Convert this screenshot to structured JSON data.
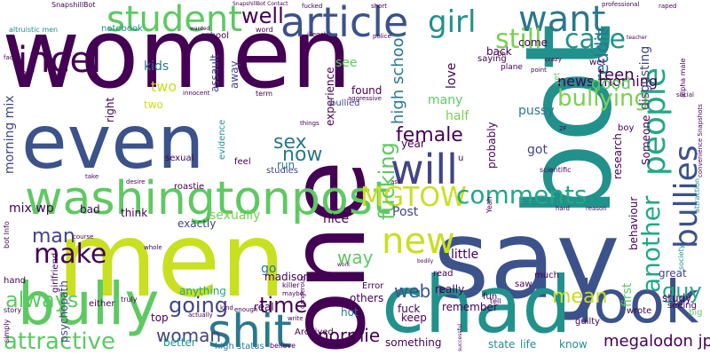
{
  "palette": {
    "dark_purple": "#440154",
    "indigo": "#3b528b",
    "teal": "#21918c",
    "green": "#5ec962",
    "yellow_green": "#c8e020",
    "slate": "#414487",
    "sea": "#2a788e",
    "mint": "#22a884",
    "lime": "#7ad151",
    "background": "#ffffff"
  },
  "words": [
    {
      "text": "women",
      "color": "#440154",
      "vertical": false
    },
    {
      "text": "men",
      "color": "#c8e020",
      "vertical": false
    },
    {
      "text": "say",
      "color": "#3b528b",
      "vertical": false
    },
    {
      "text": "one",
      "color": "#440154",
      "vertical": true
    },
    {
      "text": "bot",
      "color": "#21918c",
      "vertical": true
    },
    {
      "text": "chad",
      "color": "#21918c",
      "vertical": false
    },
    {
      "text": "even",
      "color": "#3b528b",
      "vertical": false
    },
    {
      "text": "bully",
      "color": "#5ec962",
      "vertical": false
    },
    {
      "text": "look",
      "color": "#3b528b",
      "vertical": false
    },
    {
      "text": "washingtonpost",
      "color": "#5ec962",
      "vertical": false
    },
    {
      "text": "shit",
      "color": "#2a788e",
      "vertical": false
    },
    {
      "text": "will",
      "color": "#414487",
      "vertical": false
    },
    {
      "text": "article",
      "color": "#3b528b",
      "vertical": false
    },
    {
      "text": "student",
      "color": "#5ec962",
      "vertical": false
    },
    {
      "text": "incel",
      "color": "#440154",
      "vertical": false
    },
    {
      "text": "want",
      "color": "#2a788e",
      "vertical": false
    },
    {
      "text": "people",
      "color": "#22a884",
      "vertical": true
    },
    {
      "text": "bullies",
      "color": "#3b528b",
      "vertical": true
    },
    {
      "text": "new",
      "color": "#c8e020",
      "vertical": false
    },
    {
      "text": "MGTOW",
      "color": "#c8e020",
      "vertical": false
    },
    {
      "text": "comments",
      "color": "#22a884",
      "vertical": false
    },
    {
      "text": "another",
      "color": "#22a884",
      "vertical": true
    },
    {
      "text": "girl",
      "color": "#21918c",
      "vertical": false
    },
    {
      "text": "still",
      "color": "#7ad151",
      "vertical": false
    },
    {
      "text": "case",
      "color": "#21918c",
      "vertical": false
    },
    {
      "text": "well",
      "color": "#440154",
      "vertical": false
    },
    {
      "text": "make",
      "color": "#440154",
      "vertical": false
    },
    {
      "text": "always",
      "color": "#5ec962",
      "vertical": false
    },
    {
      "text": "attractive",
      "color": "#5ec962",
      "vertical": false
    },
    {
      "text": "man",
      "color": "#414487",
      "vertical": false
    },
    {
      "text": "sex",
      "color": "#2a788e",
      "vertical": false
    },
    {
      "text": "now",
      "color": "#2a788e",
      "vertical": false
    },
    {
      "text": "female",
      "color": "#440154",
      "vertical": false
    },
    {
      "text": "bullying",
      "color": "#7ad151",
      "vertical": false
    },
    {
      "text": "guy",
      "color": "#22a884",
      "vertical": false
    },
    {
      "text": "going",
      "color": "#414487",
      "vertical": false
    },
    {
      "text": "time",
      "color": "#440154",
      "vertical": false
    },
    {
      "text": "woman",
      "color": "#414487",
      "vertical": false
    },
    {
      "text": "normie",
      "color": "#440154",
      "vertical": false
    },
    {
      "text": "mean",
      "color": "#c8e020",
      "vertical": false
    },
    {
      "text": "fucking",
      "color": "#5ec962",
      "vertical": true
    },
    {
      "text": "way",
      "color": "#5ec962",
      "vertical": false
    },
    {
      "text": "web",
      "color": "#3b528b",
      "vertical": false
    },
    {
      "text": "megalodon jp",
      "color": "#440154",
      "vertical": false
    },
    {
      "text": "reddit",
      "color": "#2a788e",
      "vertical": true
    },
    {
      "text": "news morning",
      "color": "#440154",
      "vertical": false
    },
    {
      "text": "high school",
      "color": "#2a788e",
      "vertical": true
    },
    {
      "text": "teen",
      "color": "#440154",
      "vertical": false
    },
    {
      "text": "good",
      "color": "#5ec962",
      "vertical": false
    },
    {
      "text": "morning mix",
      "color": "#414487",
      "vertical": true
    },
    {
      "text": "mix wp",
      "color": "#440154",
      "vertical": false
    },
    {
      "text": "two",
      "color": "#c8e020",
      "vertical": false
    },
    {
      "text": "kids",
      "color": "#2a788e",
      "vertical": false
    },
    {
      "text": "see",
      "color": "#5ec962",
      "vertical": false
    },
    {
      "text": "love",
      "color": "#440154",
      "vertical": true
    },
    {
      "text": "many",
      "color": "#5ec962",
      "vertical": false
    },
    {
      "text": "half",
      "color": "#7ad151",
      "vertical": false
    },
    {
      "text": "got",
      "color": "#414487",
      "vertical": false
    },
    {
      "text": "pussy",
      "color": "#2a788e",
      "vertical": false
    },
    {
      "text": "sexually",
      "color": "#7ad151",
      "vertical": false
    },
    {
      "text": "exactly",
      "color": "#414487",
      "vertical": false
    },
    {
      "text": "anything",
      "color": "#22a884",
      "vertical": false
    },
    {
      "text": "think",
      "color": "#440154",
      "vertical": false
    },
    {
      "text": "Post",
      "color": "#414487",
      "vertical": false
    },
    {
      "text": "nice",
      "color": "#440154",
      "vertical": false
    },
    {
      "text": "little",
      "color": "#440154",
      "vertical": false
    },
    {
      "text": "go",
      "color": "#2a788e",
      "vertical": false
    },
    {
      "text": "run",
      "color": "#2a788e",
      "vertical": false
    },
    {
      "text": "real",
      "color": "#440154",
      "vertical": false
    },
    {
      "text": "madison",
      "color": "#440154",
      "vertical": false
    },
    {
      "text": "others",
      "color": "#440154",
      "vertical": false
    },
    {
      "text": "fuck",
      "color": "#440154",
      "vertical": false
    },
    {
      "text": "keep",
      "color": "#440154",
      "vertical": false
    },
    {
      "text": "remember",
      "color": "#440154",
      "vertical": false
    },
    {
      "text": "really",
      "color": "#440154",
      "vertical": false
    },
    {
      "text": "hot",
      "color": "#2a788e",
      "vertical": false
    },
    {
      "text": "study",
      "color": "#440154",
      "vertical": false
    },
    {
      "text": "seeing",
      "color": "#440154",
      "vertical": false
    },
    {
      "text": "great",
      "color": "#414487",
      "vertical": false
    },
    {
      "text": "state",
      "color": "#21918c",
      "vertical": false
    },
    {
      "text": "life",
      "color": "#21918c",
      "vertical": false
    },
    {
      "text": "know",
      "color": "#21918c",
      "vertical": false
    },
    {
      "text": "something",
      "color": "#440154",
      "vertical": false
    },
    {
      "text": "psychopath",
      "color": "#414487",
      "vertical": true
    },
    {
      "text": "better",
      "color": "#21918c",
      "vertical": false
    },
    {
      "text": "top",
      "color": "#440154",
      "vertical": false
    },
    {
      "text": "bad",
      "color": "#440154",
      "vertical": false
    },
    {
      "text": "right",
      "color": "#440154",
      "vertical": true
    },
    {
      "text": "two",
      "color": "#c8e020",
      "vertical": false
    },
    {
      "text": "found",
      "color": "#440154",
      "vertical": false
    },
    {
      "text": "experience",
      "color": "#440154",
      "vertical": true
    },
    {
      "text": "bullied",
      "color": "#414487",
      "vertical": false
    },
    {
      "text": "probably",
      "color": "#440154",
      "vertical": true
    },
    {
      "text": "year",
      "color": "#440154",
      "vertical": false
    },
    {
      "text": "come",
      "color": "#440154",
      "vertical": false
    },
    {
      "text": "back",
      "color": "#440154",
      "vertical": false
    },
    {
      "text": "saying",
      "color": "#440154",
      "vertical": false
    },
    {
      "text": "school",
      "color": "#440154",
      "vertical": false
    },
    {
      "text": "away",
      "color": "#414487",
      "vertical": true
    },
    {
      "text": "assault",
      "color": "#414487",
      "vertical": true
    },
    {
      "text": "evidence",
      "color": "#21918c",
      "vertical": true
    },
    {
      "text": "sexual",
      "color": "#440154",
      "vertical": false
    },
    {
      "text": "feel",
      "color": "#440154",
      "vertical": false
    },
    {
      "text": "studies",
      "color": "#414487",
      "vertical": false
    },
    {
      "text": "disgusting",
      "color": "#414487",
      "vertical": true
    },
    {
      "text": "behaviour",
      "color": "#440154",
      "vertical": true
    },
    {
      "text": "research",
      "color": "#440154",
      "vertical": true
    },
    {
      "text": "Someone",
      "color": "#440154",
      "vertical": true
    },
    {
      "text": "boy",
      "color": "#440154",
      "vertical": false
    },
    {
      "text": "wet",
      "color": "#440154",
      "vertical": false
    },
    {
      "text": "first",
      "color": "#5ec962",
      "vertical": true
    },
    {
      "text": "wrote",
      "color": "#440154",
      "vertical": false
    },
    {
      "text": "big",
      "color": "#5ec962",
      "vertical": false
    },
    {
      "text": "either",
      "color": "#440154",
      "vertical": false
    },
    {
      "text": "attraction",
      "color": "#21918c",
      "vertical": true
    },
    {
      "text": "society",
      "color": "#21918c",
      "vertical": true
    },
    {
      "text": "guilty",
      "color": "#440154",
      "vertical": false
    },
    {
      "text": "hand",
      "color": "#440154",
      "vertical": false
    },
    {
      "text": "high status",
      "color": "#2a788e",
      "vertical": false
    },
    {
      "text": "story",
      "color": "#440154",
      "vertical": false
    },
    {
      "text": "simply",
      "color": "#440154",
      "vertical": true
    },
    {
      "text": "roastie",
      "color": "#440154",
      "vertical": false
    },
    {
      "text": "girlfriend",
      "color": "#440154",
      "vertical": true
    },
    {
      "text": "Archived",
      "color": "#440154",
      "vertical": false
    },
    {
      "text": "believe",
      "color": "#440154",
      "vertical": false
    },
    {
      "text": "Error",
      "color": "#440154",
      "vertical": false
    },
    {
      "text": "saw",
      "color": "#440154",
      "vertical": false
    },
    {
      "text": "much",
      "color": "#440154",
      "vertical": false
    },
    {
      "text": "read",
      "color": "#440154",
      "vertical": false
    },
    {
      "text": "fun",
      "color": "#440154",
      "vertical": false
    },
    {
      "text": "tell",
      "color": "#440154",
      "vertical": false
    },
    {
      "text": "notebook",
      "color": "#21918c",
      "vertical": false
    },
    {
      "text": "altruistic men",
      "color": "#21918c",
      "vertical": false
    },
    {
      "text": "SnapshillBot",
      "color": "#440154",
      "vertical": false
    },
    {
      "text": "SnapshillBot Contact",
      "color": "#440154",
      "vertical": false
    },
    {
      "text": "fucked",
      "color": "#440154",
      "vertical": false
    },
    {
      "text": "short",
      "color": "#440154",
      "vertical": false
    },
    {
      "text": "professional",
      "color": "#440154",
      "vertical": false
    },
    {
      "text": "raped",
      "color": "#440154",
      "vertical": false
    },
    {
      "text": "teacher",
      "color": "#440154",
      "vertical": false
    },
    {
      "text": "wanted",
      "color": "#440154",
      "vertical": false
    },
    {
      "text": "word",
      "color": "#440154",
      "vertical": false
    },
    {
      "text": "illegal",
      "color": "#440154",
      "vertical": false
    },
    {
      "text": "police",
      "color": "#440154",
      "vertical": false
    },
    {
      "text": "term",
      "color": "#440154",
      "vertical": false
    },
    {
      "text": "aggressive",
      "color": "#440154",
      "vertical": false
    },
    {
      "text": "crazy",
      "color": "#440154",
      "vertical": false
    },
    {
      "text": "point",
      "color": "#440154",
      "vertical": false
    },
    {
      "text": "plane",
      "color": "#440154",
      "vertical": false
    },
    {
      "text": "alpha male",
      "color": "#440154",
      "vertical": true
    },
    {
      "text": "social",
      "color": "#440154",
      "vertical": false
    },
    {
      "text": "scientific",
      "color": "#440154",
      "vertical": false
    },
    {
      "text": "convenience Snapshots",
      "color": "#440154",
      "vertical": true
    },
    {
      "text": "dangerous",
      "color": "#440154",
      "vertical": true
    },
    {
      "text": "killer",
      "color": "#440154",
      "vertical": false
    },
    {
      "text": "maybe",
      "color": "#440154",
      "vertical": false
    },
    {
      "text": "kind",
      "color": "#440154",
      "vertical": false
    },
    {
      "text": "enough",
      "color": "#440154",
      "vertical": false
    },
    {
      "text": "truly",
      "color": "#440154",
      "vertical": false
    },
    {
      "text": "actually",
      "color": "#440154",
      "vertical": false
    },
    {
      "text": "write",
      "color": "#440154",
      "vertical": false
    },
    {
      "text": "course",
      "color": "#440154",
      "vertical": false
    },
    {
      "text": "whole",
      "color": "#440154",
      "vertical": false
    },
    {
      "text": "desire",
      "color": "#440154",
      "vertical": false
    },
    {
      "text": "take",
      "color": "#440154",
      "vertical": false
    },
    {
      "text": "things",
      "color": "#440154",
      "vertical": false
    },
    {
      "text": "innocent",
      "color": "#440154",
      "vertical": false
    },
    {
      "text": "fact",
      "color": "#440154",
      "vertical": false
    },
    {
      "text": "IQ",
      "color": "#440154",
      "vertical": false
    },
    {
      "text": "bot Info",
      "color": "#440154",
      "vertical": true
    },
    {
      "text": "hard",
      "color": "#440154",
      "vertical": false
    },
    {
      "text": "reason",
      "color": "#440154",
      "vertical": false
    },
    {
      "text": "Yeah",
      "color": "#440154",
      "vertical": true
    },
    {
      "text": "Oh",
      "color": "#440154",
      "vertical": false
    },
    {
      "text": "yet",
      "color": "#5ec962",
      "vertical": true
    },
    {
      "text": "u",
      "color": "#440154",
      "vertical": false
    },
    {
      "text": "ass",
      "color": "#440154",
      "vertical": false
    },
    {
      "text": "2F",
      "color": "#440154",
      "vertical": false
    },
    {
      "text": "successful",
      "color": "#440154",
      "vertical": true
    },
    {
      "text": "work",
      "color": "#440154",
      "vertical": false
    },
    {
      "text": "bodily",
      "color": "#440154",
      "vertical": false
    }
  ]
}
